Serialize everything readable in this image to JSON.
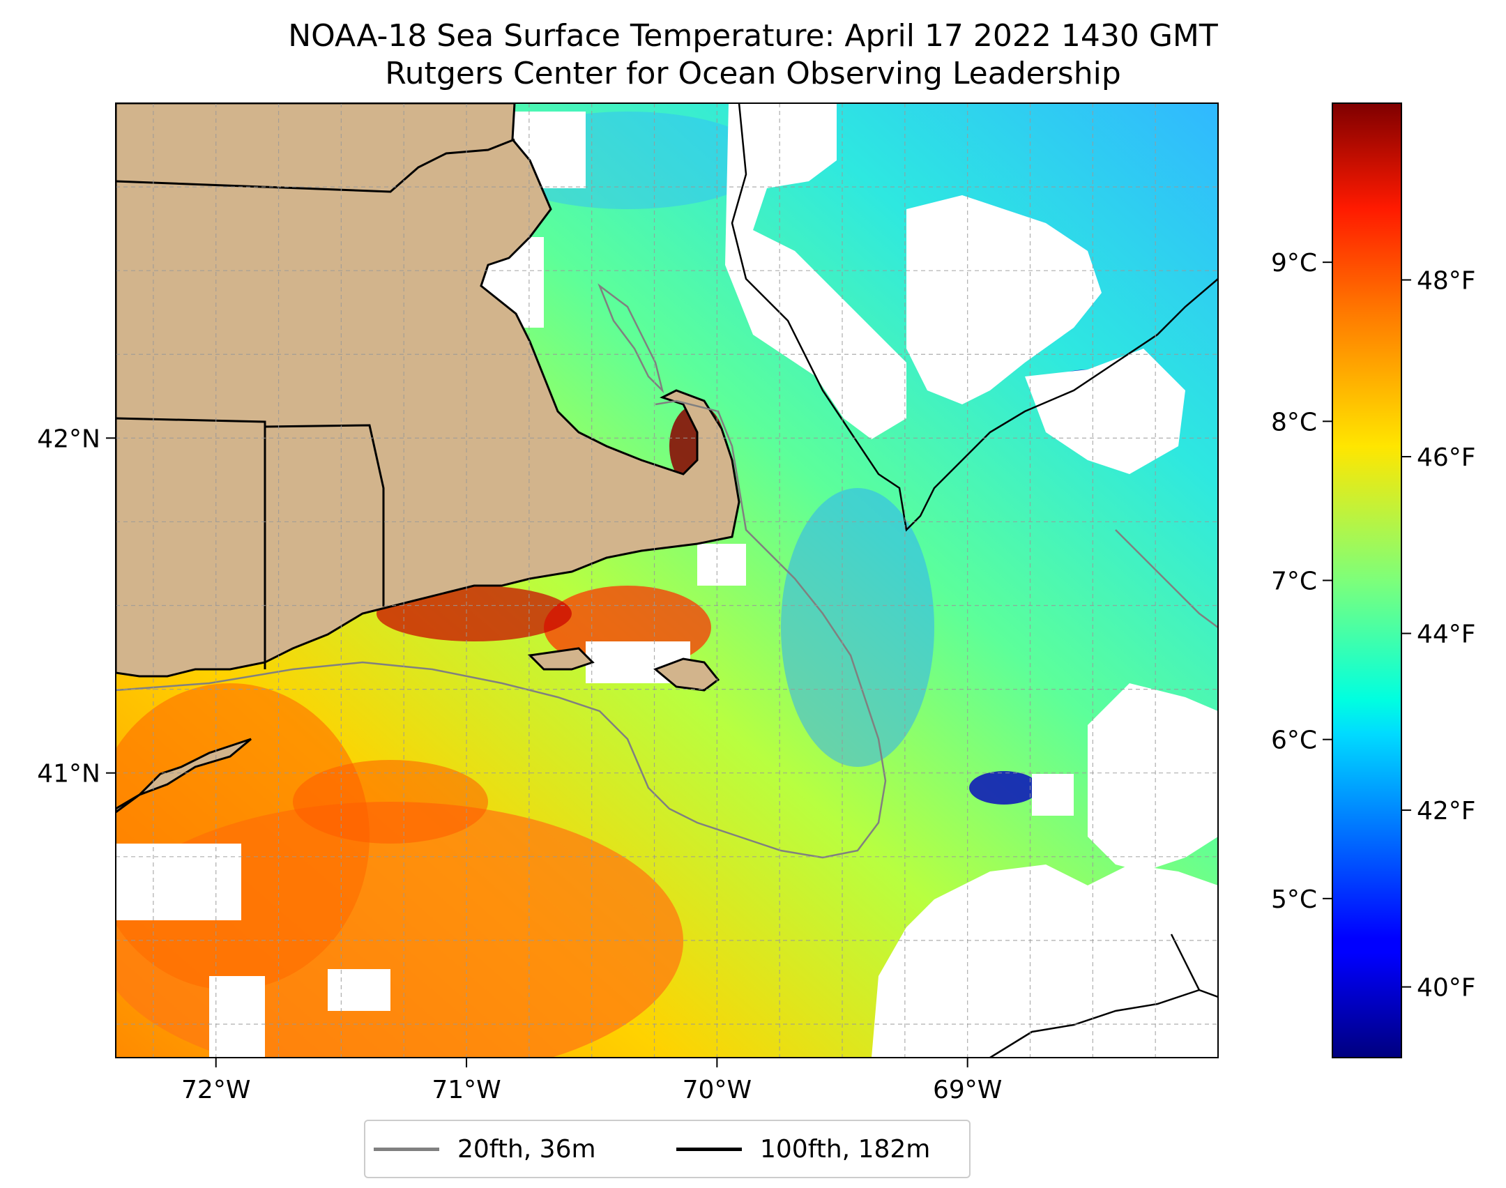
{
  "title": "NOAA-18 Sea Surface Temperature: April 17 2022 1430 GMT",
  "subtitle": "Rutgers Center for Ocean Observing Leadership",
  "map": {
    "lon_ticks": [
      {
        "value": -72,
        "label": "72°W"
      },
      {
        "value": -71,
        "label": "71°W"
      },
      {
        "value": -70,
        "label": "70°W"
      },
      {
        "value": -69,
        "label": "69°W"
      }
    ],
    "lat_ticks": [
      {
        "value": 42,
        "label": "42°N"
      },
      {
        "value": 41,
        "label": "41°N"
      }
    ],
    "extent": {
      "lon": [
        -72.4,
        -68.0
      ],
      "lat": [
        40.15,
        43.0
      ]
    },
    "land_color": "#d2b48c",
    "grid": true
  },
  "colorbar": {
    "colormap": "jet",
    "range_c": [
      4.0,
      10.0
    ],
    "celsius_ticks": [
      {
        "value": 5,
        "label": "5°C"
      },
      {
        "value": 6,
        "label": "6°C"
      },
      {
        "value": 7,
        "label": "7°C"
      },
      {
        "value": 8,
        "label": "8°C"
      },
      {
        "value": 9,
        "label": "9°C"
      }
    ],
    "fahrenheit_ticks": [
      {
        "value": 40,
        "label": "40°F"
      },
      {
        "value": 42,
        "label": "42°F"
      },
      {
        "value": 44,
        "label": "44°F"
      },
      {
        "value": 46,
        "label": "46°F"
      },
      {
        "value": 48,
        "label": "48°F"
      }
    ]
  },
  "legend": {
    "items": [
      {
        "label": "20fth, 36m",
        "color": "#808080"
      },
      {
        "label": "100fth, 182m",
        "color": "#000000"
      }
    ]
  }
}
